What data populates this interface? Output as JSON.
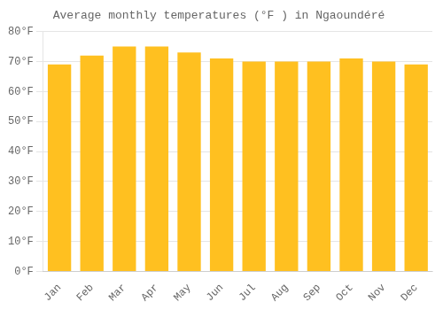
{
  "chart_data": {
    "type": "bar",
    "title": "Average monthly temperatures (°F ) in Ngaoundéré",
    "categories": [
      "Jan",
      "Feb",
      "Mar",
      "Apr",
      "May",
      "Jun",
      "Jul",
      "Aug",
      "Sep",
      "Oct",
      "Nov",
      "Dec"
    ],
    "values": [
      69,
      72,
      75,
      75,
      73,
      71,
      70,
      70,
      70,
      71,
      70,
      69
    ],
    "color": "#FFC020",
    "ylim": [
      0,
      80
    ],
    "yticks": [
      {
        "value": 0,
        "label": "0°F"
      },
      {
        "value": 10,
        "label": "10°F"
      },
      {
        "value": 20,
        "label": "20°F"
      },
      {
        "value": 30,
        "label": "30°F"
      },
      {
        "value": 40,
        "label": "40°F"
      },
      {
        "value": 50,
        "label": "50°F"
      },
      {
        "value": 60,
        "label": "60°F"
      },
      {
        "value": 70,
        "label": "70°F"
      },
      {
        "value": 80,
        "label": "80°F"
      }
    ],
    "grid": true
  }
}
